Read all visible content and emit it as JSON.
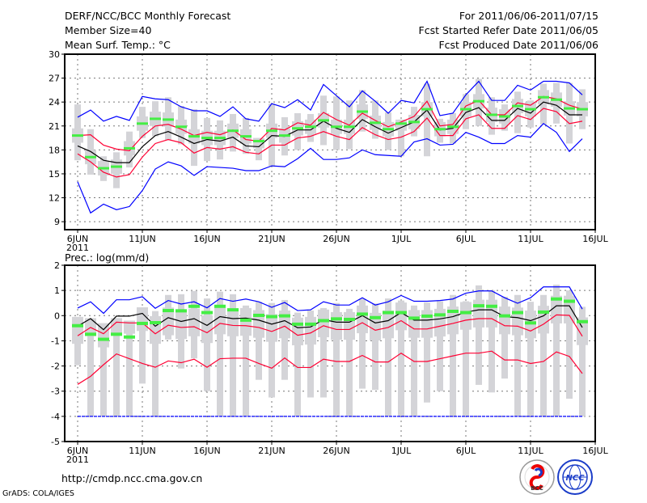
{
  "header": {
    "title": "DERF/NCC/BCC Monthly Forecast",
    "member_size": "Member Size=40",
    "variable": "Mean Surf. Temp.: °C",
    "period": "For 2011/06/06-2011/07/15",
    "started": "Fcst Started Refer Date 2011/06/05",
    "produced": "Fcst Produced Date 2011/06/06"
  },
  "footer": {
    "url": "http://cmdp.ncc.cma.gov.cn",
    "credit": "GrADS: COLA/IGES",
    "logo_bcc": "BCC",
    "logo_ncc": "NCC"
  },
  "colors": {
    "mean": "#000000",
    "quartile": "#ff0033",
    "extreme": "#0000ff",
    "marker": "#44ee44",
    "box": "#d4d4d8"
  },
  "chart_data": [
    {
      "type": "line",
      "title": "Mean Surf. Temp.: °C",
      "xlabel": "",
      "ylabel": "",
      "x_tick_labels": [
        "6JUN",
        "11JUN",
        "16JUN",
        "21JUN",
        "26JUN",
        "1JUL",
        "6JUL",
        "11JUL",
        "16JUL"
      ],
      "x_year_label": "2011",
      "y_ticks": [
        "9",
        "12",
        "15",
        "18",
        "21",
        "24",
        "27",
        "30"
      ],
      "ylim": [
        8,
        30
      ],
      "grid": true,
      "x_start": "2011-06-06",
      "n_days": 40,
      "series": [
        {
          "name": "max",
          "color": "#0000ff",
          "values": [
            22.1,
            23.0,
            21.6,
            22.2,
            21.7,
            24.7,
            24.4,
            24.3,
            23.4,
            22.9,
            22.9,
            22.2,
            23.4,
            21.9,
            21.6,
            23.8,
            23.3,
            24.3,
            23.0,
            26.2,
            24.8,
            23.4,
            25.4,
            24.1,
            22.6,
            24.2,
            23.9,
            26.6,
            22.3,
            22.6,
            24.9,
            26.6,
            24.2,
            24.2,
            26.1,
            25.5,
            26.6,
            26.6,
            26.4,
            24.9
          ]
        },
        {
          "name": "upper",
          "color": "#ff0033",
          "values": [
            19.8,
            19.9,
            18.6,
            18.1,
            17.9,
            19.7,
            21.0,
            21.2,
            20.6,
            19.8,
            20.2,
            19.9,
            20.5,
            19.3,
            19.1,
            20.7,
            20.5,
            21.4,
            21.1,
            22.7,
            21.8,
            21.1,
            22.6,
            21.7,
            20.9,
            21.5,
            22.2,
            24.1,
            21.0,
            21.2,
            23.5,
            24.2,
            22.4,
            22.4,
            23.9,
            23.6,
            24.7,
            24.4,
            23.6,
            23.1
          ]
        },
        {
          "name": "mean",
          "color": "#000000",
          "values": [
            18.5,
            17.8,
            16.7,
            16.4,
            16.4,
            18.4,
            19.8,
            20.3,
            19.6,
            18.8,
            19.3,
            19.1,
            19.6,
            18.5,
            18.4,
            19.8,
            19.7,
            20.5,
            20.5,
            21.6,
            20.7,
            20.2,
            21.8,
            20.9,
            20.1,
            20.8,
            21.5,
            23.0,
            20.5,
            20.7,
            22.7,
            23.3,
            21.7,
            21.7,
            23.2,
            22.6,
            24.0,
            23.6,
            22.4,
            22.4
          ]
        },
        {
          "name": "lower",
          "color": "#ff0033",
          "values": [
            17.5,
            16.5,
            15.2,
            14.6,
            14.9,
            17.1,
            18.8,
            19.3,
            18.9,
            17.6,
            18.3,
            18.1,
            18.4,
            17.7,
            17.5,
            18.6,
            18.6,
            19.5,
            19.7,
            20.3,
            19.7,
            19.3,
            20.8,
            19.9,
            19.3,
            19.6,
            20.3,
            22.0,
            19.8,
            19.8,
            21.9,
            22.4,
            20.7,
            20.7,
            22.3,
            21.8,
            23.2,
            22.8,
            21.3,
            21.6
          ]
        },
        {
          "name": "min",
          "color": "#0000ff",
          "values": [
            14.0,
            10.1,
            11.2,
            10.5,
            10.9,
            12.9,
            15.6,
            16.5,
            16.0,
            14.8,
            15.9,
            15.8,
            15.7,
            15.4,
            15.4,
            16.0,
            15.9,
            16.9,
            18.2,
            16.8,
            16.8,
            17.0,
            18.0,
            17.4,
            17.3,
            17.2,
            19.0,
            19.4,
            18.6,
            18.7,
            20.2,
            19.6,
            18.8,
            18.8,
            19.8,
            19.6,
            21.3,
            20.2,
            17.8,
            19.4
          ]
        }
      ],
      "markers": {
        "name": "green",
        "values": [
          19.8,
          17.1,
          15.7,
          15.9,
          18.2,
          21.3,
          21.9,
          21.8,
          20.9,
          19.7,
          19.5,
          19.5,
          20.4,
          19.7,
          19.1,
          20.4,
          19.8,
          20.7,
          20.9,
          21.7,
          20.9,
          20.9,
          22.8,
          21.4,
          20.6,
          21.3,
          21.5,
          23.1,
          20.6,
          20.9,
          23.1,
          24.1,
          22.4,
          22.2,
          23.5,
          23.1,
          24.6,
          24.3,
          23.2,
          23.1
        ]
      },
      "bars": {
        "low": [
          16.7,
          14.9,
          14.1,
          13.2,
          15.8,
          19.5,
          19.7,
          19.2,
          18.7,
          16.0,
          16.6,
          16.8,
          17.8,
          17.5,
          16.7,
          16.0,
          17.3,
          18.0,
          19.0,
          18.6,
          18.0,
          18.1,
          20.3,
          19.4,
          18.0,
          17.2,
          19.7,
          17.2,
          18.9,
          18.8,
          20.6,
          21.0,
          19.9,
          20.4,
          20.1,
          20.8,
          21.2,
          21.3,
          18.8,
          20.6
        ],
        "high": [
          23.7,
          20.6,
          17.2,
          17.7,
          20.3,
          23.4,
          24.1,
          24.6,
          23.5,
          23.1,
          22.0,
          21.7,
          22.5,
          22.0,
          19.5,
          23.8,
          22.1,
          22.6,
          22.5,
          24.8,
          24.7,
          24.2,
          25.5,
          24.2,
          22.7,
          21.8,
          23.4,
          26.3,
          21.9,
          22.6,
          25.0,
          26.9,
          24.6,
          23.7,
          25.3,
          24.2,
          26.3,
          26.4,
          26.4,
          25.6
        ]
      }
    },
    {
      "type": "line",
      "title": "Prec.: log(mm/d)",
      "xlabel": "",
      "ylabel": "",
      "x_tick_labels": [
        "6JUN",
        "11JUN",
        "16JUN",
        "21JUN",
        "26JUN",
        "1JUL",
        "6JUL",
        "11JUL",
        "16JUL"
      ],
      "x_year_label": "2011",
      "y_ticks": [
        "-5",
        "-4",
        "-3",
        "-2",
        "-1",
        "0",
        "1",
        "2"
      ],
      "ylim": [
        -5,
        2
      ],
      "grid": true,
      "x_start": "2011-06-06",
      "n_days": 40,
      "series": [
        {
          "name": "max",
          "color": "#0000ff",
          "values": [
            0.3,
            0.55,
            0.09,
            0.63,
            0.63,
            0.75,
            0.29,
            0.6,
            0.46,
            0.55,
            0.31,
            0.68,
            0.57,
            0.66,
            0.55,
            0.33,
            0.52,
            0.2,
            0.23,
            0.55,
            0.42,
            0.42,
            0.71,
            0.42,
            0.55,
            0.8,
            0.57,
            0.57,
            0.6,
            0.66,
            0.89,
            0.98,
            0.98,
            0.71,
            0.49,
            0.71,
            1.14,
            1.14,
            1.14,
            0.26
          ]
        },
        {
          "name": "upper",
          "color": "#ff0033",
          "values": [
            -0.8,
            -0.47,
            -0.72,
            -0.26,
            -0.29,
            -0.29,
            -0.72,
            -0.38,
            -0.47,
            -0.44,
            -0.68,
            -0.31,
            -0.39,
            -0.4,
            -0.47,
            -0.63,
            -0.42,
            -0.78,
            -0.69,
            -0.4,
            -0.55,
            -0.55,
            -0.28,
            -0.58,
            -0.47,
            -0.2,
            -0.53,
            -0.53,
            -0.42,
            -0.31,
            -0.18,
            -0.12,
            -0.12,
            -0.4,
            -0.42,
            -0.61,
            -0.34,
            0.03,
            0.01,
            -0.82
          ]
        },
        {
          "name": "mean",
          "color": "#000000",
          "values": [
            -0.42,
            -0.12,
            -0.56,
            -0.02,
            -0.02,
            0.09,
            -0.42,
            -0.08,
            -0.23,
            -0.12,
            -0.39,
            -0.04,
            -0.12,
            -0.1,
            -0.18,
            -0.34,
            -0.2,
            -0.48,
            -0.45,
            -0.16,
            -0.26,
            -0.26,
            0.0,
            -0.29,
            -0.2,
            0.12,
            -0.18,
            -0.18,
            -0.13,
            -0.04,
            0.14,
            0.23,
            0.23,
            -0.04,
            -0.08,
            -0.2,
            -0.01,
            0.39,
            0.39,
            -0.47
          ]
        },
        {
          "name": "lower",
          "color": "#ff0033",
          "values": [
            -2.73,
            -2.41,
            -1.95,
            -1.52,
            -1.71,
            -1.9,
            -2.05,
            -1.8,
            -1.87,
            -1.73,
            -2.05,
            -1.71,
            -1.69,
            -1.69,
            -1.9,
            -2.09,
            -1.68,
            -2.06,
            -2.06,
            -1.73,
            -1.82,
            -1.82,
            -1.58,
            -1.84,
            -1.84,
            -1.49,
            -1.82,
            -1.82,
            -1.71,
            -1.6,
            -1.49,
            -1.49,
            -1.41,
            -1.76,
            -1.76,
            -1.9,
            -1.82,
            -1.44,
            -1.62,
            -2.3
          ]
        },
        {
          "name": "min",
          "color": "#0000ff",
          "values": [
            -4,
            -4,
            -4,
            -4,
            -4,
            -4,
            -4,
            -4,
            -4,
            -4,
            -4,
            -4,
            -4,
            -4,
            -4,
            -4,
            -4,
            -4,
            -4,
            -4,
            -4,
            -4,
            -4,
            -4,
            -4,
            -4,
            -4,
            -4,
            -4,
            -4,
            -4,
            -4,
            -4,
            -4,
            -4,
            -4,
            -4,
            -4,
            -4,
            -4
          ]
        }
      ],
      "markers": {
        "name": "green",
        "values": [
          -0.4,
          -0.74,
          -0.94,
          -0.74,
          -0.85,
          -0.31,
          -0.28,
          0.2,
          0.19,
          0.37,
          0.12,
          0.37,
          0.23,
          -0.18,
          0.01,
          -0.04,
          -0.01,
          -0.34,
          -0.34,
          -0.2,
          -0.13,
          -0.15,
          0.06,
          -0.08,
          0.12,
          0.12,
          -0.1,
          -0.02,
          0.03,
          0.17,
          0.12,
          0.39,
          0.37,
          -0.01,
          0.12,
          -0.29,
          0.14,
          0.66,
          0.57,
          -0.24
        ]
      },
      "bars": {
        "low": [
          -1.97,
          -4,
          -4,
          -4,
          -4,
          -2.7,
          -4,
          -0.95,
          -2.1,
          -1.7,
          -3.0,
          -4,
          -4,
          -4,
          -2.55,
          -3.25,
          -2.55,
          -4,
          -3.25,
          -3.25,
          -4,
          -4,
          -2.9,
          -2.95,
          -4,
          -4,
          -4,
          -3.45,
          -3.0,
          -4,
          -4,
          -2.75,
          -3.05,
          -2.5,
          -4,
          -4,
          -4,
          -4,
          -3.3,
          -4
        ],
        "high": [
          -0.05,
          -0.1,
          -0.3,
          -0.1,
          -0.2,
          0.33,
          0.18,
          0.82,
          0.85,
          0.98,
          0.68,
          0.95,
          0.85,
          0.4,
          0.55,
          0.5,
          0.62,
          0.12,
          0.2,
          0.3,
          0.5,
          0.27,
          0.67,
          0.48,
          0.68,
          0.6,
          0.4,
          0.52,
          0.57,
          0.82,
          0.57,
          1.2,
          1.0,
          0.75,
          0.82,
          0.55,
          0.82,
          1.23,
          1.0,
          0.35
        ]
      }
    }
  ]
}
